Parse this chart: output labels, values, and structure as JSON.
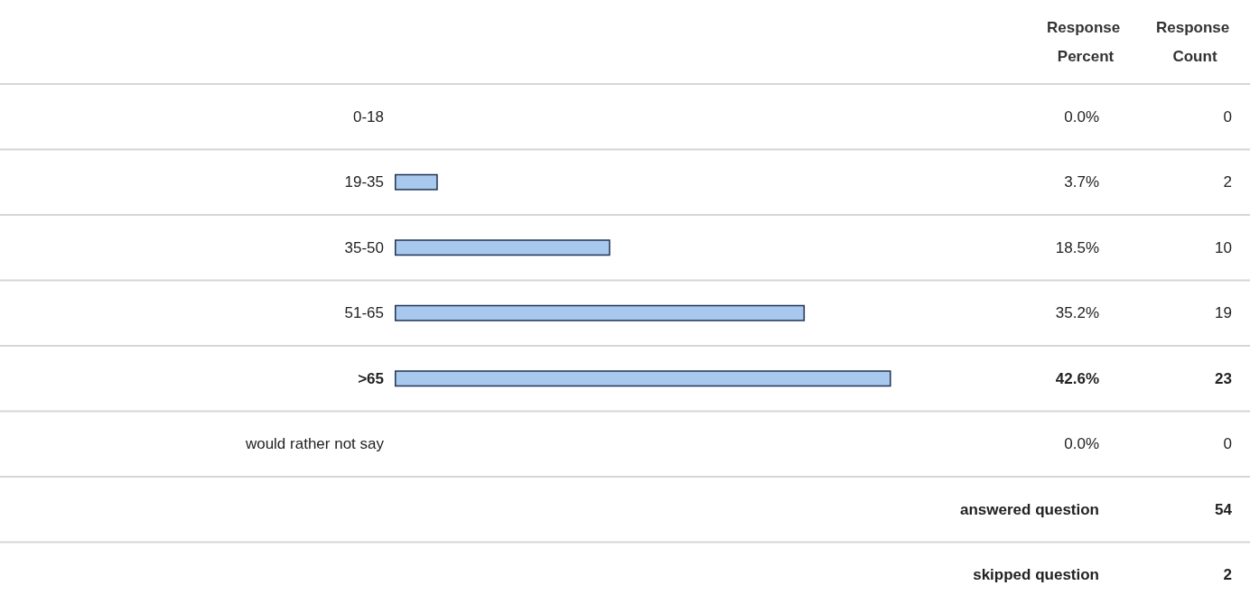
{
  "chart_data": {
    "type": "bar",
    "orientation": "horizontal",
    "categories": [
      "0-18",
      "19-35",
      "35-50",
      "51-65",
      ">65",
      "would rather not say"
    ],
    "series": [
      {
        "name": "Response Percent",
        "color": "#a9c8ee",
        "values": [
          0.0,
          3.7,
          18.5,
          35.2,
          42.6,
          0.0
        ],
        "value_labels": [
          "0.0%",
          "3.7%",
          "18.5%",
          "35.2%",
          "42.6%",
          "0.0%"
        ]
      }
    ],
    "tick_labels": "y",
    "grid": "y",
    "legend": false,
    "annotations": [
      "Response Count",
      "0",
      "2",
      "10",
      "19",
      "23",
      "0",
      "answered question",
      "54",
      "skipped question",
      "2"
    ]
  }
}
